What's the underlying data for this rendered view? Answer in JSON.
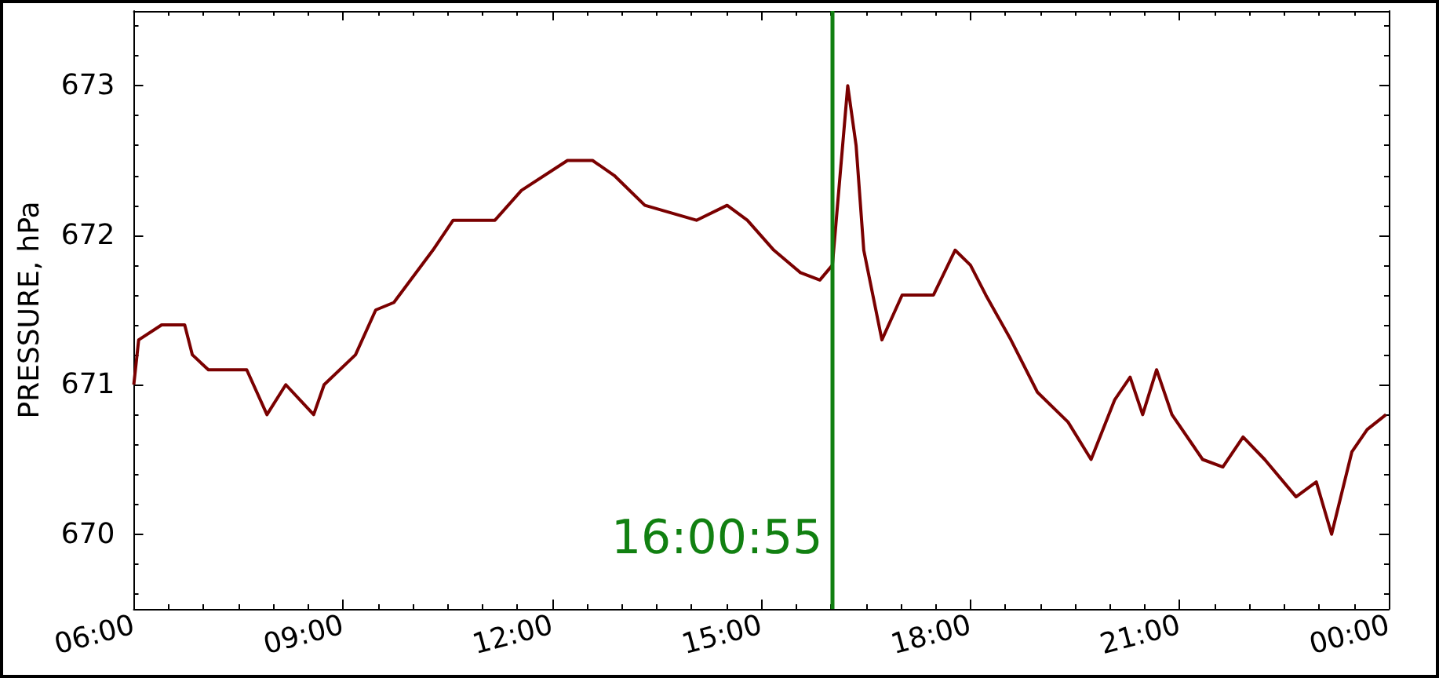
{
  "chart_data": {
    "type": "line",
    "ylabel": "PRESSURE, hPa",
    "x": [
      6.0,
      6.07,
      6.4,
      6.73,
      6.84,
      7.07,
      7.62,
      7.91,
      8.18,
      8.58,
      8.73,
      9.18,
      9.47,
      9.73,
      10.29,
      10.58,
      11.18,
      11.56,
      12.22,
      12.58,
      12.89,
      13.33,
      14.07,
      14.51,
      14.8,
      15.18,
      15.56,
      15.84,
      16.02,
      16.13,
      16.24,
      16.36,
      16.47,
      16.73,
      17.02,
      17.47,
      17.78,
      18.0,
      18.22,
      18.58,
      18.96,
      19.4,
      19.73,
      20.07,
      20.29,
      20.47,
      20.67,
      20.89,
      21.33,
      21.62,
      21.91,
      22.22,
      22.67,
      22.96,
      23.18,
      23.47,
      23.69,
      23.96
    ],
    "series": [
      {
        "color": "#7a0000",
        "values": [
          671.0,
          671.3,
          671.4,
          671.4,
          671.2,
          671.1,
          671.1,
          670.8,
          671.0,
          670.8,
          671.0,
          671.2,
          671.5,
          671.55,
          671.9,
          672.1,
          672.1,
          672.3,
          672.5,
          672.5,
          672.4,
          672.2,
          672.1,
          672.2,
          672.1,
          671.9,
          671.75,
          671.7,
          671.8,
          672.4,
          673.0,
          672.6,
          671.9,
          671.3,
          671.6,
          671.6,
          671.9,
          671.8,
          671.6,
          671.3,
          670.95,
          670.75,
          670.5,
          670.9,
          671.05,
          670.8,
          671.1,
          670.8,
          670.5,
          670.45,
          670.65,
          670.5,
          670.25,
          670.35,
          670.0,
          670.55,
          670.7,
          670.8
        ]
      }
    ],
    "xlim": [
      6,
      24
    ],
    "xticks": [
      {
        "value": 6,
        "label": "06:00"
      },
      {
        "value": 9,
        "label": "09:00"
      },
      {
        "value": 12,
        "label": "12:00"
      },
      {
        "value": 15,
        "label": "15:00"
      },
      {
        "value": 18,
        "label": "18:00"
      },
      {
        "value": 21,
        "label": "21:00"
      },
      {
        "value": 24,
        "label": "00:00"
      }
    ],
    "ylim": [
      669.5,
      673.5
    ],
    "yticks": [
      670,
      671,
      672,
      673
    ],
    "ref_lines": [
      {
        "axis": "x",
        "value": 16.015,
        "label": "16:00:55",
        "color": "#118011"
      }
    ],
    "grid": false,
    "marker": "none",
    "line_style": "solid"
  }
}
